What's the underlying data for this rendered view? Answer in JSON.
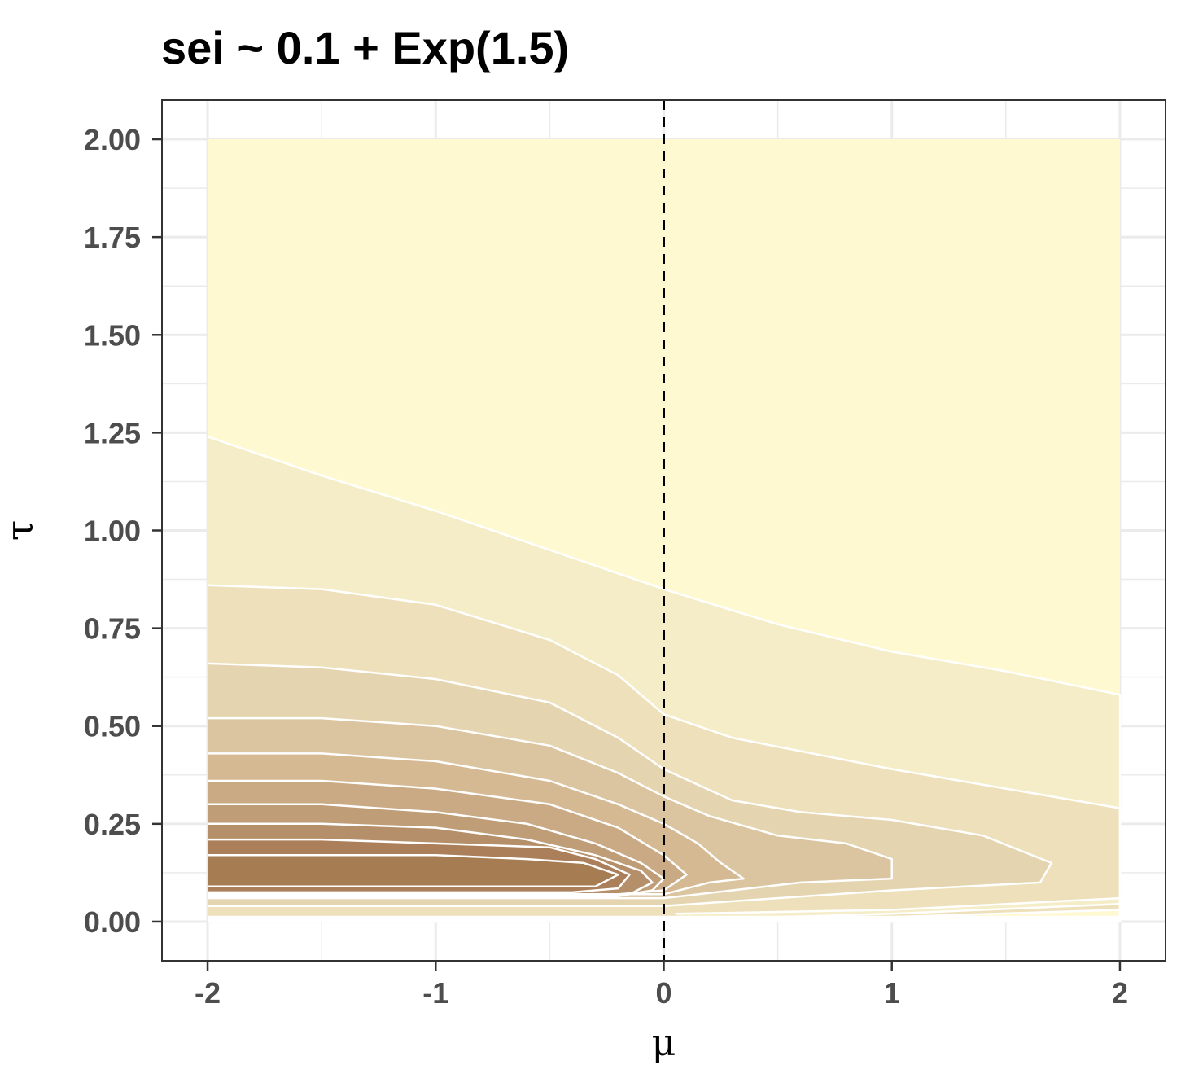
{
  "chart_data": {
    "type": "contour",
    "title": "sei ~ 0.1 + Exp(1.5)",
    "xlabel": "μ",
    "ylabel": "τ",
    "xlim": [
      -2.2,
      2.2
    ],
    "ylim": [
      -0.1,
      2.1
    ],
    "x_ticks": [
      -2,
      -1,
      0,
      1,
      2
    ],
    "x_tick_labels": [
      "-2",
      "-1",
      "0",
      "1",
      "2"
    ],
    "y_ticks": [
      0,
      0.25,
      0.5,
      0.75,
      1,
      1.25,
      1.5,
      1.75,
      2
    ],
    "y_tick_labels": [
      "0.00",
      "0.25",
      "0.50",
      "0.75",
      "1.00",
      "1.25",
      "1.50",
      "1.75",
      "2.00"
    ],
    "data_extent": {
      "x": [
        -2,
        2
      ],
      "y": [
        0,
        2
      ]
    },
    "reference_line": {
      "type": "vertical",
      "x": 0,
      "style": "dashed",
      "color": "#000000"
    },
    "grid": true,
    "background_fill": "#fff9d2",
    "fill_colors": [
      "#fff9d2",
      "#f5edc7",
      "#ede0ba",
      "#e4d4af",
      "#dbc5a0",
      "#d4b992",
      "#c9aa84",
      "#bf9e77",
      "#b58f69",
      "#ab7f5a",
      "#a67c52"
    ],
    "contours": [
      {
        "level": 1,
        "fill": "#f5edc7",
        "points": [
          [
            -2,
            1.24
          ],
          [
            -1.5,
            1.14
          ],
          [
            -1,
            1.05
          ],
          [
            -0.5,
            0.95
          ],
          [
            0,
            0.85
          ],
          [
            0.5,
            0.76
          ],
          [
            1,
            0.69
          ],
          [
            1.5,
            0.64
          ],
          [
            2,
            0.58
          ],
          [
            2,
            0
          ],
          [
            -2,
            0
          ]
        ]
      },
      {
        "level": 2,
        "fill": "#ede0ba",
        "points": [
          [
            -2,
            0.86
          ],
          [
            -1.5,
            0.85
          ],
          [
            -1,
            0.81
          ],
          [
            -0.5,
            0.72
          ],
          [
            -0.2,
            0.63
          ],
          [
            0,
            0.53
          ],
          [
            0.3,
            0.47
          ],
          [
            1,
            0.39
          ],
          [
            1.5,
            0.34
          ],
          [
            2,
            0.29
          ],
          [
            2,
            0
          ],
          [
            -2,
            0
          ]
        ]
      },
      {
        "level": 3,
        "fill": "#e4d4af",
        "points": [
          [
            -2,
            0.66
          ],
          [
            -1.5,
            0.65
          ],
          [
            -1,
            0.62
          ],
          [
            -0.5,
            0.56
          ],
          [
            -0.2,
            0.47
          ],
          [
            0,
            0.39
          ],
          [
            0.3,
            0.31
          ],
          [
            0.6,
            0.28
          ],
          [
            1,
            0.26
          ],
          [
            1.4,
            0.22
          ],
          [
            1.7,
            0.15
          ],
          [
            1.65,
            0.1
          ],
          [
            1,
            0.08
          ],
          [
            0.5,
            0.06
          ],
          [
            0,
            0.04
          ],
          [
            -2,
            0.04
          ]
        ]
      },
      {
        "level": 4,
        "fill": "#dbc5a0",
        "points": [
          [
            -2,
            0.52
          ],
          [
            -1.5,
            0.52
          ],
          [
            -1,
            0.5
          ],
          [
            -0.5,
            0.45
          ],
          [
            -0.2,
            0.38
          ],
          [
            0,
            0.32
          ],
          [
            0.2,
            0.27
          ],
          [
            0.5,
            0.22
          ],
          [
            0.8,
            0.2
          ],
          [
            1,
            0.16
          ],
          [
            1,
            0.11
          ],
          [
            0.6,
            0.1
          ],
          [
            0.3,
            0.08
          ],
          [
            0,
            0.06
          ],
          [
            -2,
            0.06
          ]
        ]
      },
      {
        "level": 5,
        "fill": "#d4b992",
        "points": [
          [
            -2,
            0.43
          ],
          [
            -1.5,
            0.43
          ],
          [
            -1,
            0.41
          ],
          [
            -0.5,
            0.36
          ],
          [
            -0.2,
            0.3
          ],
          [
            0,
            0.25
          ],
          [
            0.15,
            0.2
          ],
          [
            0.25,
            0.15
          ],
          [
            0.35,
            0.11
          ],
          [
            0.2,
            0.1
          ],
          [
            0,
            0.07
          ],
          [
            -2,
            0.07
          ]
        ]
      },
      {
        "level": 6,
        "fill": "#c9aa84",
        "points": [
          [
            -2,
            0.36
          ],
          [
            -1.5,
            0.36
          ],
          [
            -1,
            0.34
          ],
          [
            -0.5,
            0.3
          ],
          [
            -0.2,
            0.24
          ],
          [
            0,
            0.17
          ],
          [
            0.1,
            0.12
          ],
          [
            0,
            0.08
          ],
          [
            -0.2,
            0.07
          ],
          [
            -2,
            0.07
          ]
        ]
      },
      {
        "level": 7,
        "fill": "#bf9e77",
        "points": [
          [
            -2,
            0.3
          ],
          [
            -1.5,
            0.3
          ],
          [
            -1,
            0.28
          ],
          [
            -0.6,
            0.25
          ],
          [
            -0.3,
            0.2
          ],
          [
            -0.1,
            0.15
          ],
          [
            0,
            0.11
          ],
          [
            -0.05,
            0.08
          ],
          [
            -0.2,
            0.065
          ],
          [
            -2,
            0.065
          ]
        ]
      },
      {
        "level": 8,
        "fill": "#b58f69",
        "points": [
          [
            -2,
            0.25
          ],
          [
            -1.5,
            0.25
          ],
          [
            -1,
            0.24
          ],
          [
            -0.6,
            0.21
          ],
          [
            -0.3,
            0.17
          ],
          [
            -0.1,
            0.13
          ],
          [
            -0.05,
            0.1
          ],
          [
            -0.15,
            0.07
          ],
          [
            -2,
            0.07
          ]
        ]
      },
      {
        "level": 9,
        "fill": "#ab7f5a",
        "points": [
          [
            -2,
            0.21
          ],
          [
            -1.5,
            0.21
          ],
          [
            -1,
            0.2
          ],
          [
            -0.5,
            0.19
          ],
          [
            -0.3,
            0.16
          ],
          [
            -0.15,
            0.12
          ],
          [
            -0.2,
            0.085
          ],
          [
            -0.4,
            0.075
          ],
          [
            -2,
            0.075
          ]
        ]
      },
      {
        "level": 10,
        "fill": "#a67c52",
        "points": [
          [
            -2,
            0.17
          ],
          [
            -1.5,
            0.17
          ],
          [
            -1,
            0.17
          ],
          [
            -0.6,
            0.16
          ],
          [
            -0.35,
            0.15
          ],
          [
            -0.2,
            0.12
          ],
          [
            -0.3,
            0.09
          ],
          [
            -0.5,
            0.09
          ],
          [
            -2,
            0.09
          ]
        ]
      }
    ],
    "bottom_bands": [
      {
        "fill": "#f5edc7",
        "points": [
          [
            0.05,
            0.02
          ],
          [
            1,
            0.03
          ],
          [
            2,
            0.06
          ],
          [
            2,
            0.045
          ],
          [
            1,
            0.02
          ],
          [
            0.1,
            0.005
          ]
        ]
      },
      {
        "fill": "#fff9d2",
        "points": [
          [
            0.2,
            0.005
          ],
          [
            1,
            0.012
          ],
          [
            2,
            0.03
          ],
          [
            2,
            0.01
          ],
          [
            1,
            0.005
          ]
        ]
      }
    ]
  }
}
